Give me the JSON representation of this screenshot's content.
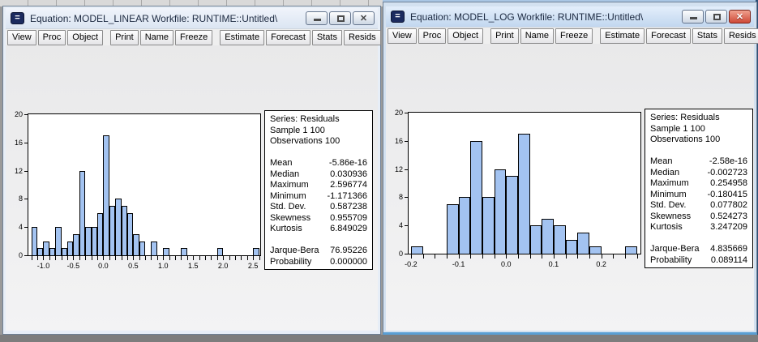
{
  "windows": [
    {
      "title": "Equation: MODEL_LINEAR   Workfile: RUNTIME::Untitled\\",
      "active": false,
      "toolbar_groups": [
        [
          "View",
          "Proc",
          "Object"
        ],
        [
          "Print",
          "Name",
          "Freeze"
        ],
        [
          "Estimate",
          "Forecast",
          "Stats",
          "Resids"
        ]
      ],
      "stats": {
        "header": [
          "Series: Residuals",
          "Sample 1 100",
          "Observations 100"
        ],
        "rows": [
          [
            "Mean",
            "-5.86e-16"
          ],
          [
            "Median",
            "0.030936"
          ],
          [
            "Maximum",
            "2.596774"
          ],
          [
            "Minimum",
            "-1.171366"
          ],
          [
            "Std. Dev.",
            "0.587238"
          ],
          [
            "Skewness",
            "0.955709"
          ],
          [
            "Kurtosis",
            "6.849029"
          ]
        ],
        "rows2": [
          [
            "Jarque-Bera",
            "76.95226"
          ],
          [
            "Probability",
            "0.000000"
          ]
        ]
      }
    },
    {
      "title": "Equation: MODEL_LOG   Workfile: RUNTIME::Untitled\\",
      "active": true,
      "toolbar_groups": [
        [
          "View",
          "Proc",
          "Object"
        ],
        [
          "Print",
          "Name",
          "Freeze"
        ],
        [
          "Estimate",
          "Forecast",
          "Stats",
          "Resids"
        ]
      ],
      "stats": {
        "header": [
          "Series: Residuals",
          "Sample 1 100",
          "Observations 100"
        ],
        "rows": [
          [
            "Mean",
            "-2.58e-16"
          ],
          [
            "Median",
            "-0.002723"
          ],
          [
            "Maximum",
            "0.254958"
          ],
          [
            "Minimum",
            "-0.180415"
          ],
          [
            "Std. Dev.",
            "0.077802"
          ],
          [
            "Skewness",
            "0.524273"
          ],
          [
            "Kurtosis",
            "3.247209"
          ]
        ],
        "rows2": [
          [
            "Jarque-Bera",
            "4.835669"
          ],
          [
            "Probability",
            "0.089114"
          ]
        ]
      }
    }
  ],
  "chart_data": [
    {
      "type": "bar",
      "subtype": "histogram",
      "series_name": "Residuals (MODEL_LINEAR)",
      "bin_start": -1.2,
      "bin_width": 0.1,
      "counts": [
        4,
        1,
        2,
        1,
        4,
        1,
        2,
        3,
        12,
        4,
        4,
        6,
        17,
        7,
        8,
        7,
        6,
        3,
        2,
        0,
        2,
        0,
        1,
        0,
        0,
        1,
        0,
        0,
        0,
        0,
        0,
        1,
        0,
        0,
        0,
        0,
        0,
        1
      ],
      "x_range": [
        -1.25,
        2.62
      ],
      "x_minor_step": 0.1,
      "x_tick_values": [
        -1.0,
        -0.5,
        0.0,
        0.5,
        1.0,
        1.5,
        2.0,
        2.5
      ],
      "x_tick_labels": [
        "-1.0",
        "-0.5",
        "0.0",
        "0.5",
        "1.0",
        "1.5",
        "2.0",
        "2.5"
      ],
      "y_ticks": [
        0,
        4,
        8,
        12,
        16,
        20
      ],
      "ylim": [
        0,
        20
      ],
      "grid": false,
      "bar_color": "#a3c3f1",
      "bar_border_color": "#000000"
    },
    {
      "type": "bar",
      "subtype": "histogram",
      "series_name": "Residuals (MODEL_LOG)",
      "bin_start": -0.2,
      "bin_width": 0.025,
      "counts": [
        1,
        0,
        0,
        7,
        8,
        16,
        8,
        12,
        11,
        17,
        4,
        5,
        4,
        2,
        3,
        1,
        0,
        0,
        1
      ],
      "x_range": [
        -0.205,
        0.2825
      ],
      "x_minor_step": 0.025,
      "x_tick_values": [
        -0.2,
        -0.1,
        0.0,
        0.1,
        0.2
      ],
      "x_tick_labels": [
        "-0.2",
        "-0.1",
        "0.0",
        "0.1",
        "0.2"
      ],
      "y_ticks": [
        0,
        4,
        8,
        12,
        16,
        20
      ],
      "ylim": [
        0,
        20
      ],
      "grid": false,
      "bar_color": "#a3c3f1",
      "bar_border_color": "#000000"
    }
  ]
}
